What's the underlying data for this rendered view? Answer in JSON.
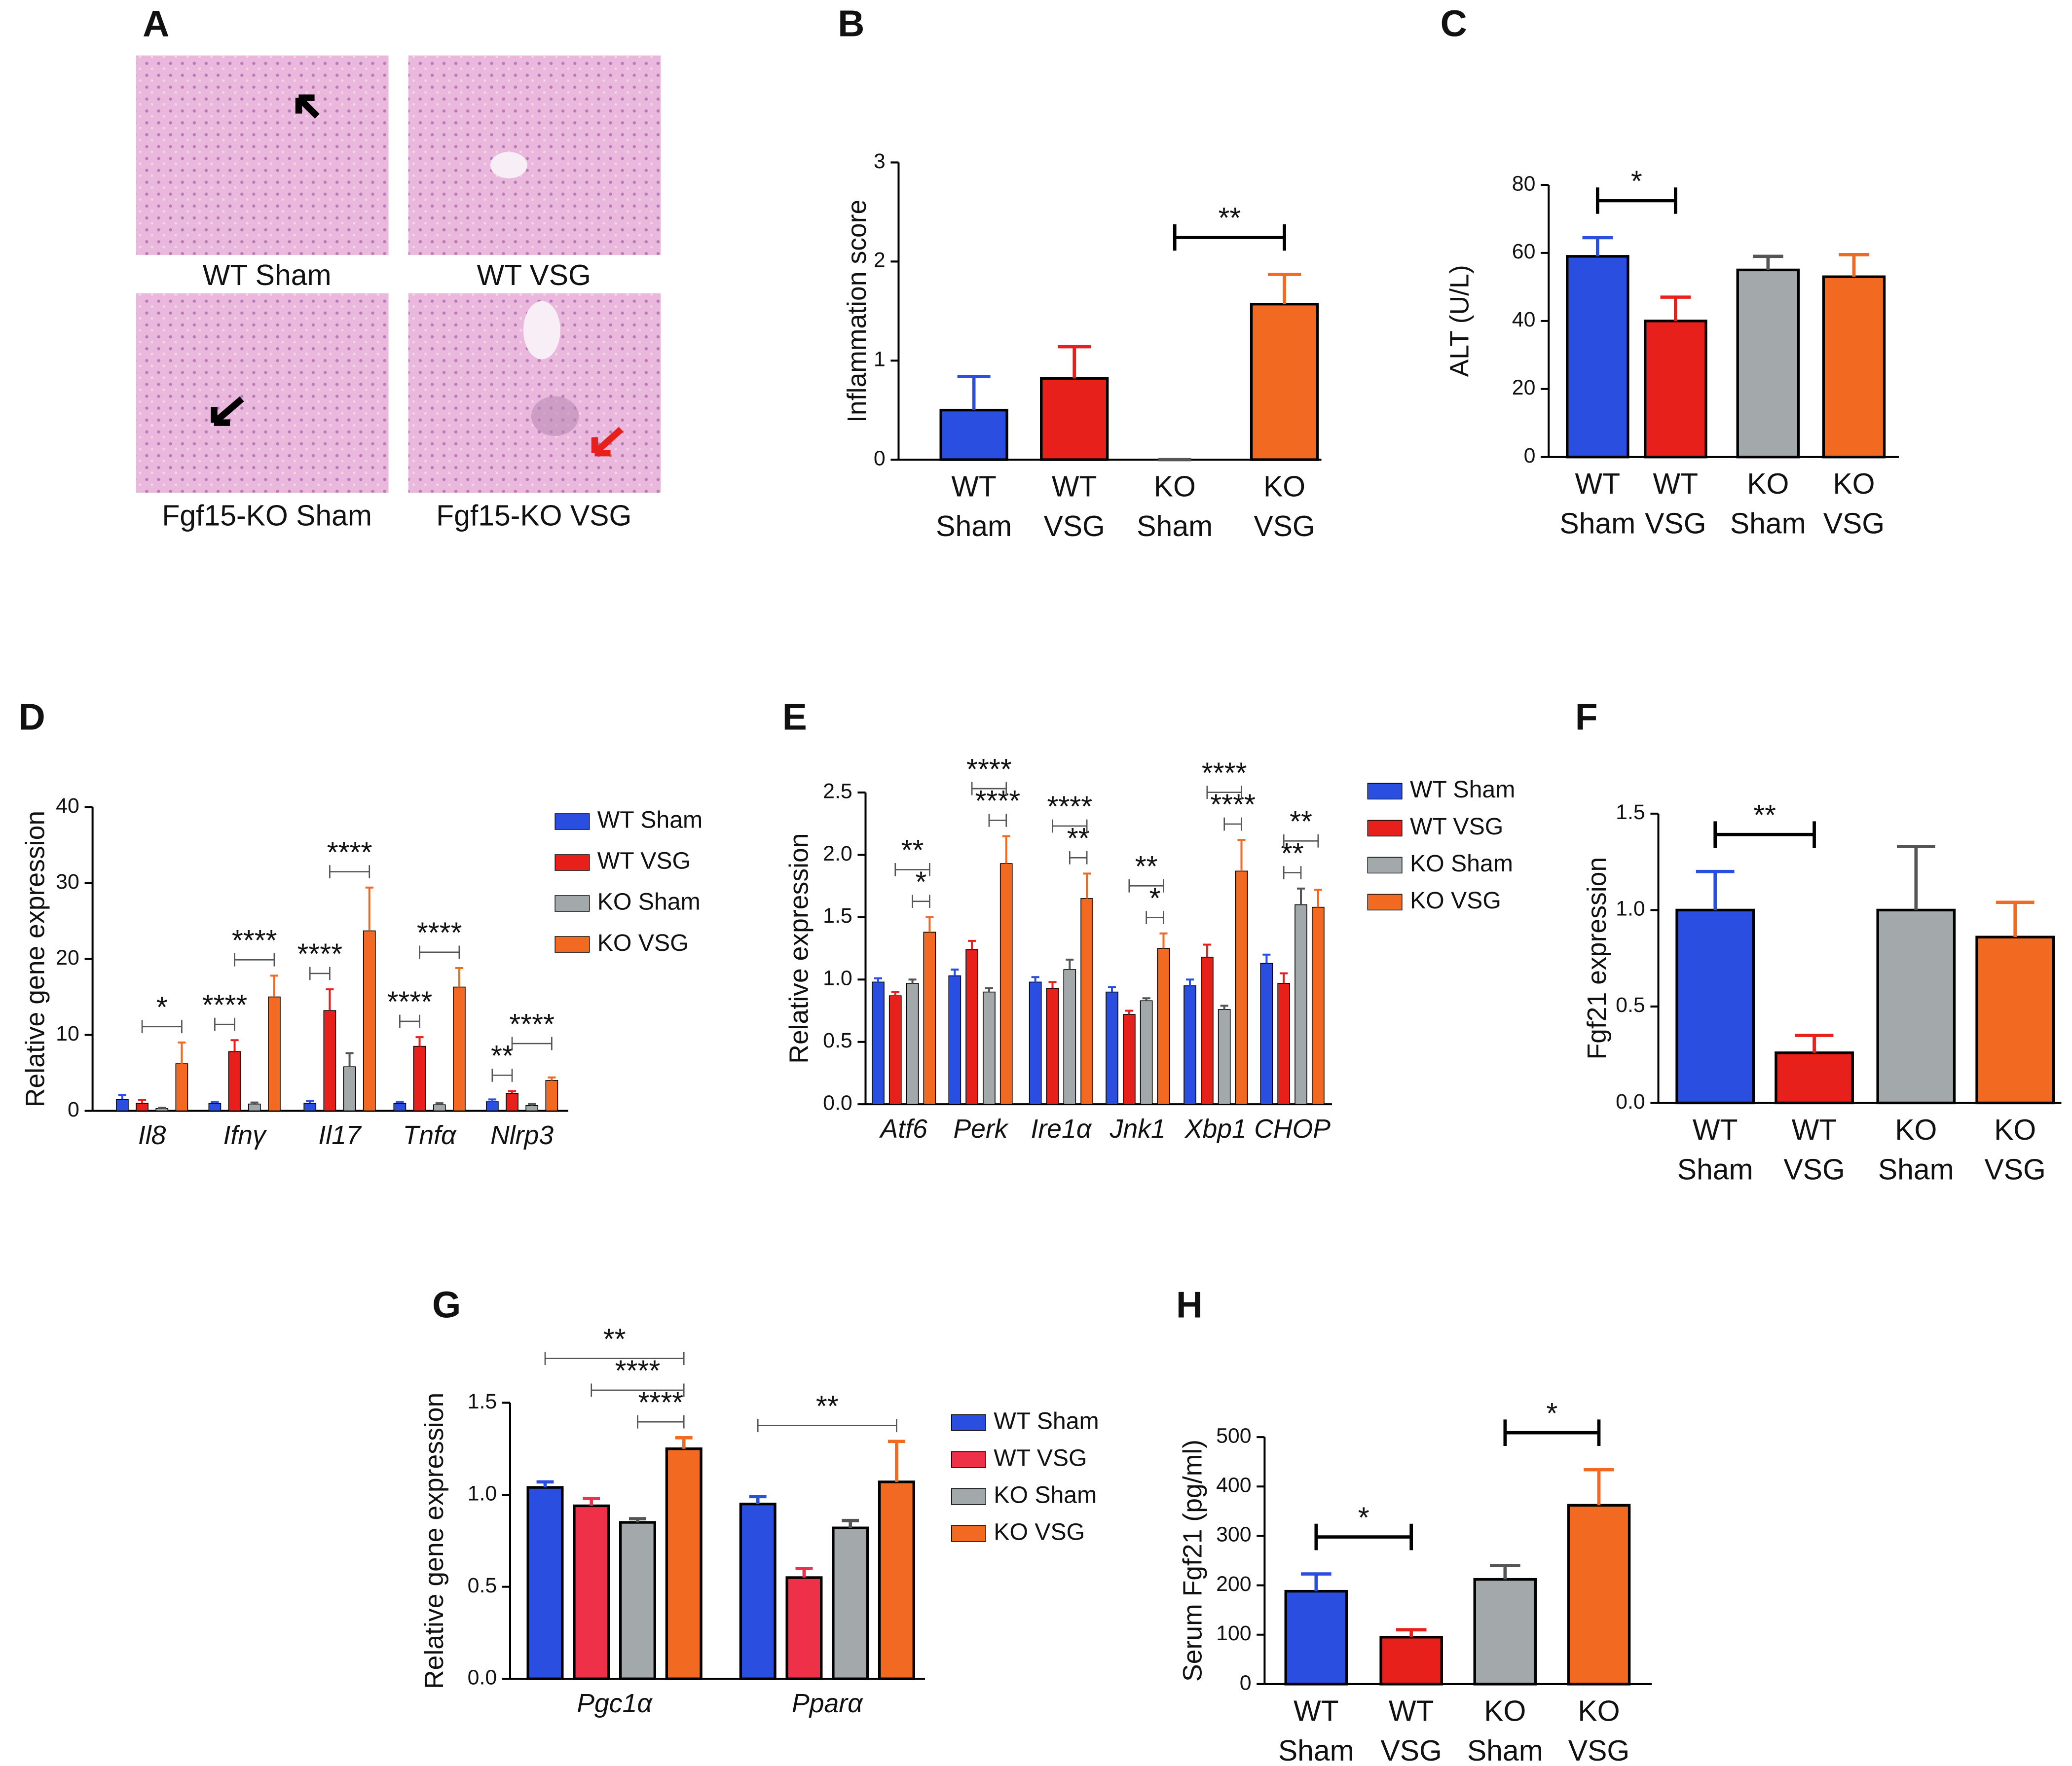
{
  "panel_a": {
    "label": "A",
    "captions": [
      "WT Sham",
      "WT VSG",
      "Fgf15-KO Sham",
      "Fgf15-KO VSG"
    ]
  },
  "chart_data": [
    {
      "type": "bar",
      "panel_label": "B",
      "ylabel": "Inflammation score",
      "categories": [
        [
          "WT",
          "Sham"
        ],
        [
          "WT",
          "VSG"
        ],
        [
          "KO",
          "Sham"
        ],
        [
          "KO",
          "VSG"
        ]
      ],
      "values": [
        0.5,
        0.82,
        0,
        1.57
      ],
      "errors": [
        0.34,
        0.32,
        0,
        0.3
      ],
      "colors": [
        "#2a4fe0",
        "#e8201c",
        "#a3a8ab",
        "#f26a22"
      ],
      "ylim": [
        0,
        3
      ],
      "yticks": [
        0,
        1,
        2,
        3
      ],
      "significance": [
        {
          "from": 2,
          "to": 3,
          "label": "**"
        }
      ]
    },
    {
      "type": "bar",
      "panel_label": "C",
      "ylabel": "ALT (U/L)",
      "categories": [
        [
          "WT",
          "Sham"
        ],
        [
          "WT",
          "VSG"
        ],
        [
          "KO",
          "Sham"
        ],
        [
          "KO",
          "VSG"
        ]
      ],
      "values": [
        59,
        40,
        55,
        53
      ],
      "errors": [
        5.5,
        7,
        4,
        6.5
      ],
      "colors": [
        "#2a4fe0",
        "#e8201c",
        "#a3a8ab",
        "#f26a22"
      ],
      "ylim": [
        0,
        80
      ],
      "yticks": [
        0,
        20,
        40,
        60,
        80
      ],
      "significance": [
        {
          "from": 0,
          "to": 1,
          "label": "*"
        }
      ]
    },
    {
      "type": "grouped_bar",
      "panel_label": "D",
      "ylabel": "Relative gene expression",
      "categories": [
        "Il8",
        "Ifnγ",
        "Il17",
        "Tnfα",
        "Nlrp3"
      ],
      "series": [
        {
          "name": "WT Sham",
          "color": "#2a4fe0",
          "values": [
            1.5,
            1,
            1,
            1,
            1.2
          ],
          "errors": [
            0.6,
            0.2,
            0.3,
            0.2,
            0.3
          ]
        },
        {
          "name": "WT VSG",
          "color": "#e8201c",
          "values": [
            1,
            7.8,
            13.2,
            8.5,
            2.3
          ],
          "errors": [
            0.4,
            1.5,
            2.8,
            1.2,
            0.3
          ]
        },
        {
          "name": "KO Sham",
          "color": "#a3a8ab",
          "values": [
            0.3,
            0.9,
            5.8,
            0.8,
            0.7
          ],
          "errors": [
            0.1,
            0.2,
            1.8,
            0.2,
            0.2
          ]
        },
        {
          "name": "KO VSG",
          "color": "#f26a22",
          "values": [
            6.2,
            15,
            23.7,
            16.3,
            4
          ],
          "errors": [
            2.8,
            2.8,
            5.7,
            2.5,
            0.4
          ]
        }
      ],
      "ylim": [
        0,
        40
      ],
      "yticks": [
        0,
        10,
        20,
        30,
        40
      ],
      "significance": [
        {
          "category": 0,
          "from": 1,
          "to": 3,
          "label": "*"
        },
        {
          "category": 1,
          "from": 0,
          "to": 1,
          "label": "****"
        },
        {
          "category": 1,
          "from": 1,
          "to": 3,
          "label": "****"
        },
        {
          "category": 2,
          "from": 0,
          "to": 1,
          "label": "****"
        },
        {
          "category": 2,
          "from": 1,
          "to": 3,
          "label": "****"
        },
        {
          "category": 3,
          "from": 0,
          "to": 1,
          "label": "****"
        },
        {
          "category": 3,
          "from": 1,
          "to": 3,
          "label": "****"
        },
        {
          "category": 4,
          "from": 0,
          "to": 1,
          "label": "**"
        },
        {
          "category": 4,
          "from": 1,
          "to": 3,
          "label": "****"
        }
      ]
    },
    {
      "type": "grouped_bar",
      "panel_label": "E",
      "ylabel": "Relative expression",
      "categories": [
        "Atf6",
        "Perk",
        "Ire1α",
        "Jnk1",
        "Xbp1",
        "CHOP"
      ],
      "series": [
        {
          "name": "WT Sham",
          "color": "#2a4fe0",
          "values": [
            0.98,
            1.03,
            0.98,
            0.9,
            0.95,
            1.13
          ],
          "errors": [
            0.03,
            0.05,
            0.04,
            0.04,
            0.05,
            0.07
          ]
        },
        {
          "name": "WT VSG",
          "color": "#e8201c",
          "values": [
            0.87,
            1.24,
            0.93,
            0.72,
            1.18,
            0.97
          ],
          "errors": [
            0.03,
            0.07,
            0.05,
            0.03,
            0.1,
            0.08
          ]
        },
        {
          "name": "KO Sham",
          "color": "#a3a8ab",
          "values": [
            0.97,
            0.9,
            1.08,
            0.83,
            0.76,
            1.6
          ],
          "errors": [
            0.03,
            0.03,
            0.08,
            0.02,
            0.03,
            0.13
          ]
        },
        {
          "name": "KO VSG",
          "color": "#f26a22",
          "values": [
            1.38,
            1.93,
            1.65,
            1.25,
            1.87,
            1.58
          ],
          "errors": [
            0.12,
            0.22,
            0.2,
            0.12,
            0.25,
            0.14
          ]
        }
      ],
      "ylim": [
        0,
        2.5
      ],
      "yticks": [
        {
          "value": 0,
          "label": "0.0"
        },
        0.5,
        {
          "value": 1,
          "label": "1.0"
        },
        1.5,
        {
          "value": 2,
          "label": "2.0"
        },
        2.5
      ],
      "significance": [
        {
          "category": 0,
          "from": 2,
          "to": 3,
          "label": "*"
        },
        {
          "category": 0,
          "from": 1,
          "to": 3,
          "label": "**"
        },
        {
          "category": 1,
          "from": 2,
          "to": 3,
          "label": "****"
        },
        {
          "category": 1,
          "from": 1,
          "to": 3,
          "label": "****"
        },
        {
          "category": 2,
          "from": 2,
          "to": 3,
          "label": "**"
        },
        {
          "category": 2,
          "from": 1,
          "to": 3,
          "label": "****"
        },
        {
          "category": 3,
          "from": 2,
          "to": 3,
          "label": "*"
        },
        {
          "category": 3,
          "from": 1,
          "to": 3,
          "label": "**"
        },
        {
          "category": 4,
          "from": 2,
          "to": 3,
          "label": "****"
        },
        {
          "category": 4,
          "from": 1,
          "to": 3,
          "label": "****"
        },
        {
          "category": 5,
          "from": 1,
          "to": 2,
          "label": "**"
        },
        {
          "category": 5,
          "from": 1,
          "to": 3,
          "label": "**"
        }
      ]
    },
    {
      "type": "bar",
      "panel_label": "F",
      "ylabel": "Fgf21 expression",
      "categories": [
        [
          "WT",
          "Sham"
        ],
        [
          "WT",
          "VSG"
        ],
        [
          "KO",
          "Sham"
        ],
        [
          "KO",
          "VSG"
        ]
      ],
      "values": [
        1,
        0.26,
        1,
        0.86
      ],
      "errors": [
        0.2,
        0.09,
        0.33,
        0.18
      ],
      "colors": [
        "#2a4fe0",
        "#e8201c",
        "#a3a8ab",
        "#f26a22"
      ],
      "ylim": [
        0,
        1.5
      ],
      "yticks": [
        {
          "value": 0,
          "label": "0.0"
        },
        0.5,
        {
          "value": 1,
          "label": "1.0"
        },
        1.5
      ],
      "significance": [
        {
          "from": 0,
          "to": 1,
          "label": "**"
        }
      ]
    },
    {
      "type": "grouped_bar",
      "panel_label": "G",
      "ylabel": "Relative gene expression",
      "categories": [
        "Pgc1α",
        "Pparα"
      ],
      "series": [
        {
          "name": "WT Sham",
          "color": "#2a4fe0",
          "values": [
            1.04,
            0.95
          ],
          "errors": [
            0.03,
            0.04
          ]
        },
        {
          "name": "WT VSG",
          "color": "#ee3148",
          "values": [
            0.94,
            0.55
          ],
          "errors": [
            0.04,
            0.05
          ]
        },
        {
          "name": "KO Sham",
          "color": "#a3a8ab",
          "values": [
            0.85,
            0.82
          ],
          "errors": [
            0.02,
            0.04
          ]
        },
        {
          "name": "KO VSG",
          "color": "#f26a22",
          "values": [
            1.25,
            1.07
          ],
          "errors": [
            0.06,
            0.22
          ]
        }
      ],
      "ylim": [
        0,
        1.5
      ],
      "yticks": [
        {
          "value": 0,
          "label": "0.0"
        },
        0.5,
        {
          "value": 1,
          "label": "1.0"
        },
        1.5
      ],
      "significance": [
        {
          "category": 0,
          "from": 2,
          "to": 3,
          "label": "****"
        },
        {
          "category": 0,
          "from": 1,
          "to": 3,
          "label": "****"
        },
        {
          "category": 0,
          "from": 0,
          "to": 3,
          "label": "**"
        },
        {
          "category": 1,
          "from": 0,
          "to": 3,
          "label": "**"
        }
      ]
    },
    {
      "type": "bar",
      "panel_label": "H",
      "ylabel": "Serum Fgf21 (pg/ml)",
      "categories": [
        [
          "WT",
          "Sham"
        ],
        [
          "WT",
          "VSG"
        ],
        [
          "KO",
          "Sham"
        ],
        [
          "KO",
          "VSG"
        ]
      ],
      "values": [
        188,
        95,
        212,
        362
      ],
      "errors": [
        35,
        15,
        28,
        72
      ],
      "colors": [
        "#2a4fe0",
        "#e8201c",
        "#a3a8ab",
        "#f26a22"
      ],
      "ylim": [
        0,
        500
      ],
      "yticks": [
        0,
        100,
        200,
        300,
        400,
        500
      ],
      "significance": [
        {
          "from": 0,
          "to": 1,
          "label": "*"
        },
        {
          "from": 2,
          "to": 3,
          "label": "*"
        }
      ]
    }
  ]
}
